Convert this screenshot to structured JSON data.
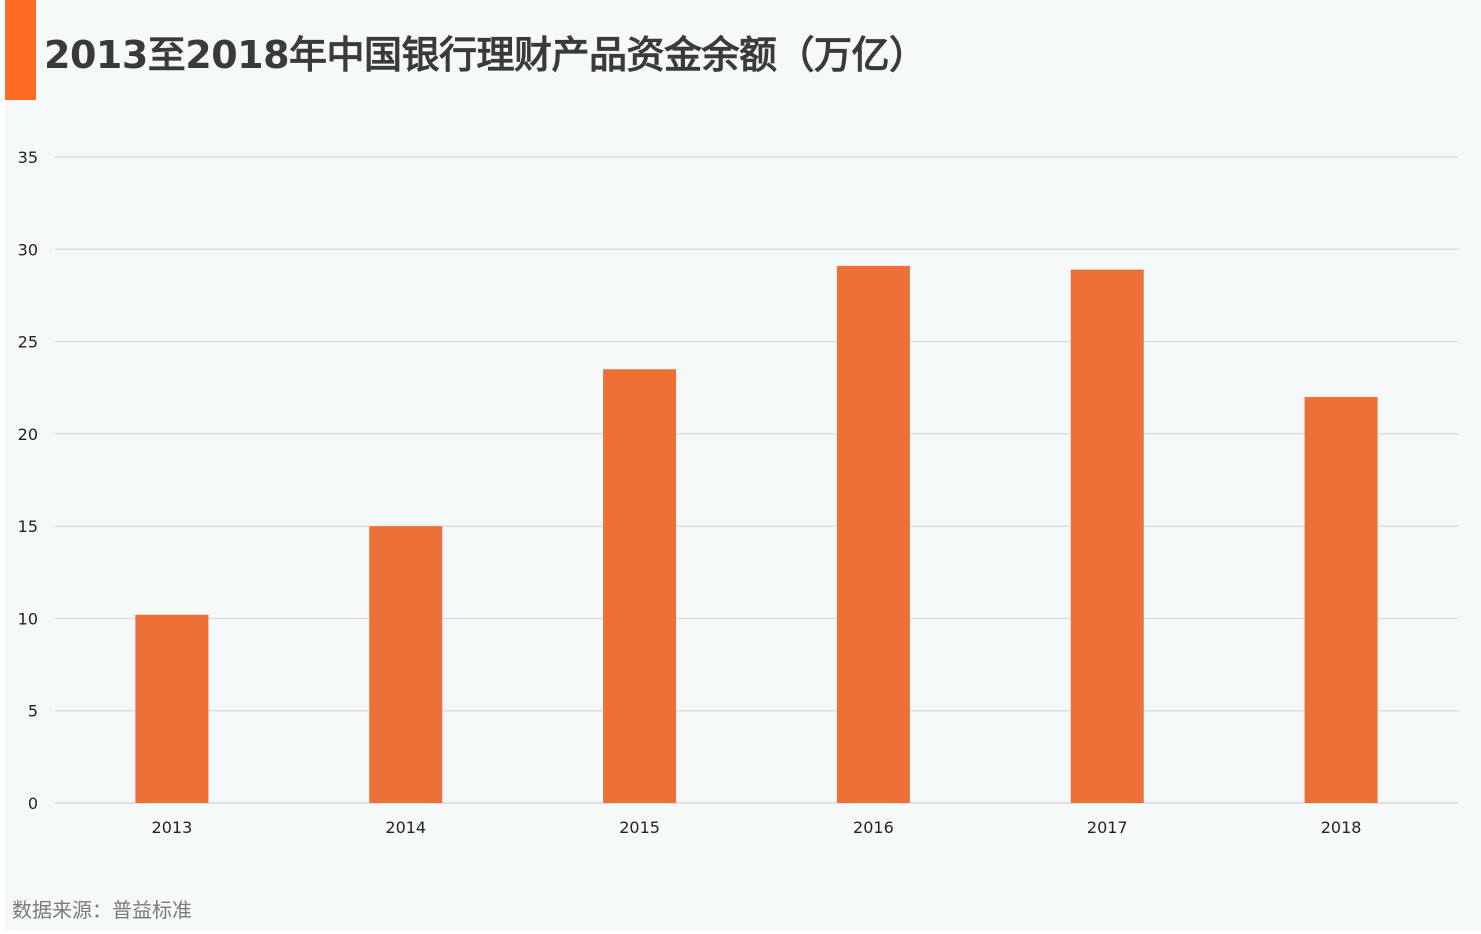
{
  "title": "2013至2018年中国银行理财产品资金余额（万亿）",
  "source": "数据来源：普益标准",
  "colors": {
    "accent": "#ff6a24",
    "bar": "#ed7136",
    "grid": "#d9d9d9",
    "axis_text": "#222222",
    "background": "#f6f9fa"
  },
  "chart_data": {
    "type": "bar",
    "categories": [
      "2013",
      "2014",
      "2015",
      "2016",
      "2017",
      "2018"
    ],
    "values": [
      10.2,
      15.0,
      23.5,
      29.1,
      28.9,
      22.0
    ],
    "ylim": [
      0,
      35
    ],
    "yticks": [
      "0",
      "5",
      "10",
      "15",
      "20",
      "25",
      "30",
      "35"
    ],
    "ytick_values": [
      0,
      5,
      10,
      15,
      20,
      25,
      30,
      35
    ],
    "grid": true,
    "legend": "none"
  }
}
